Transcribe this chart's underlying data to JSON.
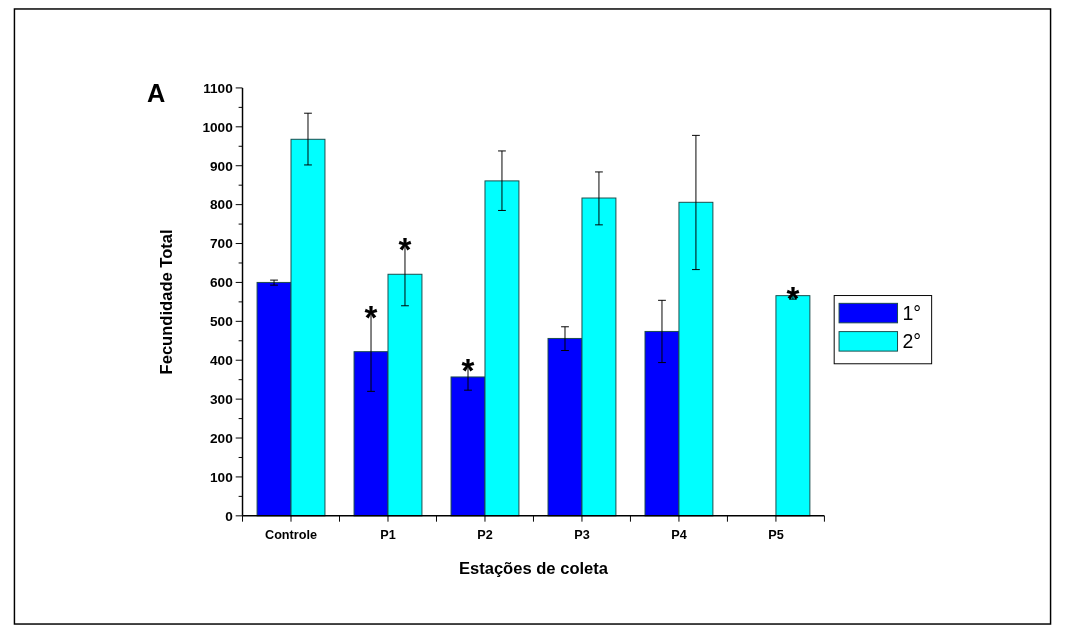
{
  "chart_data": {
    "type": "bar",
    "xlabel": "Estações de coleta",
    "ylabel": "Fecundidade Total",
    "categories": [
      "Controle",
      "P1",
      "P2",
      "P3",
      "P4",
      "P5"
    ],
    "series": [
      {
        "name": "1°",
        "color": "#0000ff",
        "values": [
          600,
          422,
          357,
          456,
          474,
          null
        ],
        "errors": [
          [
            593,
            606
          ],
          [
            320,
            525
          ],
          [
            323,
            390
          ],
          [
            425,
            486
          ],
          [
            394,
            554
          ],
          null
        ]
      },
      {
        "name": "2°",
        "color": "#00ffff",
        "values": [
          968,
          621,
          861,
          817,
          806,
          566
        ],
        "errors": [
          [
            902,
            1035
          ],
          [
            540,
            700
          ],
          [
            785,
            938
          ],
          [
            748,
            884
          ],
          [
            633,
            978
          ],
          [
            557,
            575
          ]
        ]
      }
    ],
    "ylim": [
      0,
      1100
    ],
    "yticks": [
      0,
      {
        "value": 50,
        "label": null
      },
      100,
      {
        "value": 150,
        "label": null
      },
      200,
      {
        "value": 250,
        "label": null
      },
      300,
      {
        "value": 350,
        "label": null
      },
      400,
      {
        "value": 450,
        "label": null
      },
      500,
      {
        "value": 550,
        "label": null
      },
      600,
      {
        "value": 650,
        "label": null
      },
      700,
      {
        "value": 750,
        "label": null
      },
      800,
      {
        "value": 850,
        "label": null
      },
      900,
      {
        "value": 950,
        "label": null
      },
      1000,
      {
        "value": 1050,
        "label": null
      },
      1100
    ],
    "grid": false,
    "legend": "right",
    "annotations": [
      "A",
      {
        "text": "*",
        "x": "P1",
        "y": 422
      },
      {
        "text": "*",
        "x": "P1",
        "y": 621
      },
      {
        "text": "*",
        "x": "P2",
        "y": 357
      },
      {
        "text": "*",
        "x": "P5",
        "y": 566
      }
    ]
  }
}
